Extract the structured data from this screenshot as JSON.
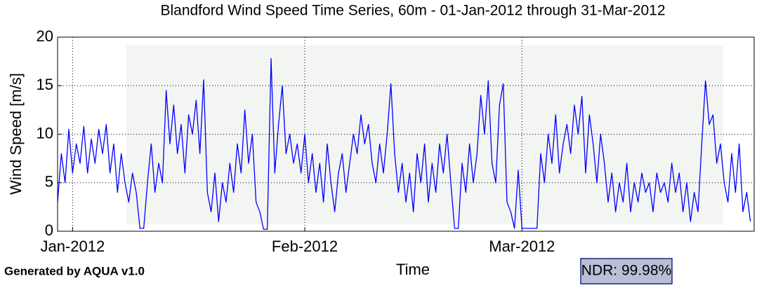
{
  "chart_data": {
    "type": "line",
    "title": "Blandford Wind Speed Time Series, 60m - 01-Jan-2012 through 31-Mar-2012",
    "x_label": "Time",
    "y_label": "Wind Speed [m/s]",
    "annotations": [
      "Generated by AQUA v1.0",
      "NDR: 99.98%"
    ],
    "color": "#0000ff",
    "grid": true,
    "xlim": [
      -2,
      91
    ],
    "ylim": [
      0,
      20
    ],
    "xticks": [
      {
        "value": 0,
        "label": "Jan-2012"
      },
      {
        "value": 31,
        "label": "Feb-2012"
      },
      {
        "value": 60,
        "label": "Mar-2012"
      }
    ],
    "yticks": [
      0,
      5,
      10,
      15,
      20
    ],
    "x": [
      -2,
      -1.5,
      -1,
      -0.5,
      0,
      0.5,
      1,
      1.5,
      2,
      2.5,
      3,
      3.5,
      4,
      4.5,
      5,
      5.5,
      6,
      6.5,
      7,
      7.5,
      8,
      8.5,
      9,
      9.5,
      10,
      10.5,
      11,
      11.5,
      12,
      12.5,
      13,
      13.5,
      14,
      14.5,
      15,
      15.5,
      16,
      16.5,
      17,
      17.5,
      18,
      18.5,
      19,
      19.5,
      20,
      20.5,
      21,
      21.5,
      22,
      22.5,
      23,
      23.5,
      24,
      24.5,
      25,
      25.5,
      26,
      26.5,
      27,
      27.5,
      28,
      28.5,
      29,
      29.5,
      30,
      30.5,
      31,
      31.5,
      32,
      32.5,
      33,
      33.5,
      34,
      34.5,
      35,
      35.5,
      36,
      36.5,
      37,
      37.5,
      38,
      38.5,
      39,
      39.5,
      40,
      40.5,
      41,
      41.5,
      42,
      42.5,
      43,
      43.5,
      44,
      44.5,
      45,
      45.5,
      46,
      46.5,
      47,
      47.5,
      48,
      48.5,
      49,
      49.5,
      50,
      50.5,
      51,
      51.5,
      52,
      52.5,
      53,
      53.5,
      54,
      54.5,
      55,
      55.5,
      56,
      56.5,
      57,
      57.5,
      58,
      58.5,
      59,
      59.5,
      60,
      60.5,
      61,
      61.5,
      62,
      62.5,
      63,
      63.5,
      64,
      64.5,
      65,
      65.5,
      66,
      66.5,
      67,
      67.5,
      68,
      68.5,
      69,
      69.5,
      70,
      70.5,
      71,
      71.5,
      72,
      72.5,
      73,
      73.5,
      74,
      74.5,
      75,
      75.5,
      76,
      76.5,
      77,
      77.5,
      78,
      78.5,
      79,
      79.5,
      80,
      80.5,
      81,
      81.5,
      82,
      82.5,
      83,
      83.5,
      84,
      84.5,
      85,
      85.5,
      86,
      86.5,
      87,
      87.5,
      88,
      88.5,
      89,
      89.5,
      90,
      90.5
    ],
    "values": [
      3,
      8,
      5,
      10.5,
      6,
      9,
      7,
      10.8,
      6,
      9.5,
      7,
      10.5,
      8,
      11,
      6,
      9,
      4,
      8,
      5,
      3,
      6,
      4,
      0.3,
      0.3,
      5,
      9,
      4,
      7,
      5,
      14.5,
      9,
      13,
      8,
      11,
      6,
      12,
      10,
      13.5,
      8,
      15.6,
      4,
      2,
      6,
      1,
      5,
      3,
      7,
      4,
      9,
      6,
      12.5,
      7,
      10,
      3,
      2,
      0.2,
      0.2,
      17.8,
      6,
      11,
      15,
      8,
      10,
      7,
      9,
      6,
      10,
      5,
      8,
      4,
      7,
      3,
      9,
      5,
      2,
      6,
      8,
      4,
      7,
      10,
      8,
      12,
      9,
      11,
      7,
      5,
      9,
      6,
      10,
      15.2,
      8,
      4,
      7,
      3,
      6,
      2,
      8,
      5,
      9,
      3,
      7,
      4,
      9,
      6,
      10,
      5,
      0.3,
      0.3,
      7,
      4,
      9,
      5,
      8,
      14,
      10,
      15.5,
      7,
      5,
      13,
      15.2,
      3,
      2,
      0.3,
      6.3,
      0.3,
      0.3,
      0.3,
      0.3,
      0.3,
      8,
      5,
      10,
      7,
      12,
      6,
      9,
      11,
      8,
      13,
      10,
      13.9,
      6,
      12,
      9,
      5,
      10,
      7,
      3,
      6,
      2,
      5,
      3,
      7,
      2,
      5,
      3,
      6,
      4,
      5,
      2,
      6,
      4,
      5,
      3,
      7,
      4,
      6,
      2,
      5,
      1,
      4,
      2,
      9,
      15.5,
      11,
      12,
      7,
      9,
      5,
      3,
      8,
      4,
      9,
      2,
      4,
      1
    ]
  }
}
